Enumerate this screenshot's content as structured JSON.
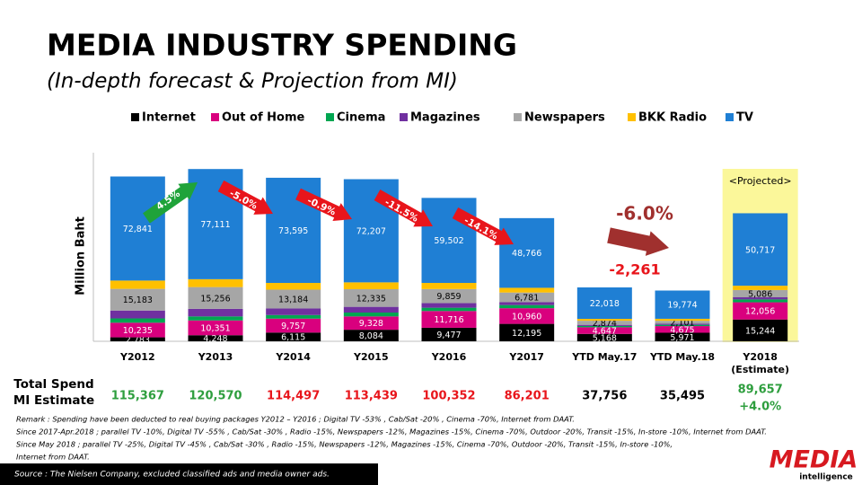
{
  "chart_data": {
    "type": "bar",
    "stacked": true,
    "title": "MEDIA INDUSTRY SPENDING",
    "subtitle": "(In-depth forecast & Projection from MI)",
    "y_label": "Million Baht",
    "legend": "top",
    "categories": [
      "Y2012",
      "Y2013",
      "Y2014",
      "Y2015",
      "Y2016",
      "Y2017",
      "YTD May.17",
      "YTD May.18",
      "Y2018\n(Estimate)"
    ],
    "ylim": [
      0,
      132000
    ],
    "series": [
      {
        "name": "Internet",
        "color": "#000000",
        "label_color": "#ffffff",
        "values": [
          2783,
          4248,
          6115,
          8084,
          9477,
          12195,
          5168,
          5971,
          15244
        ],
        "value_labels": [
          "2,783",
          "4,248",
          "6,115",
          "8,084",
          "9,477",
          "12,195",
          "5,168",
          "5,971",
          "15,244"
        ]
      },
      {
        "name": "Out of Home",
        "color": "#d9007e",
        "label_color": "#ffffff",
        "values": [
          10235,
          10351,
          9757,
          9328,
          11716,
          10960,
          4647,
          4675,
          12056
        ],
        "value_labels": [
          "10,235",
          "10,351",
          "9,757",
          "9,328",
          "11,716",
          "10,960",
          "4,647",
          "4,675",
          "12,056"
        ]
      },
      {
        "name": "Cinema",
        "color": "#00a651",
        "values": [
          3000,
          2800,
          2500,
          2700,
          2300,
          2200,
          900,
          900,
          2000
        ]
      },
      {
        "name": "Magazines",
        "color": "#7030a0",
        "values": [
          5500,
          5300,
          4600,
          4000,
          3200,
          2000,
          800,
          700,
          1500
        ]
      },
      {
        "name": "Newspapers",
        "color": "#a6a6a6",
        "label_color": "#000000",
        "values": [
          15183,
          15256,
          13184,
          12335,
          9859,
          6781,
          2874,
          2101,
          5086
        ],
        "value_labels": [
          "15,183",
          "15,256",
          "13,184",
          "12,335",
          "9,859",
          "6,781",
          "2,874",
          "2,101",
          "5,086"
        ]
      },
      {
        "name": "BKK Radio",
        "color": "#ffc000",
        "values": [
          5800,
          5500,
          4700,
          4800,
          4300,
          3300,
          1300,
          1400,
          3000
        ]
      },
      {
        "name": "TV",
        "color": "#1f7fd4",
        "label_color": "#ffffff",
        "values": [
          72841,
          77111,
          73595,
          72207,
          59502,
          48766,
          22018,
          19774,
          50717
        ],
        "value_labels": [
          "72,841",
          "77,111",
          "73,595",
          "72,207",
          "59,502",
          "48,766",
          "22,018",
          "19,774",
          "50,717"
        ]
      }
    ],
    "growth": [
      {
        "text": "4.5%",
        "color": "#1fa33a"
      },
      {
        "text": "-5.0%",
        "color": "#e8151b"
      },
      {
        "text": "-0.9%",
        "color": "#e8151b"
      },
      {
        "text": "-11.5%",
        "color": "#e8151b"
      },
      {
        "text": "-14.1%",
        "color": "#e8151b"
      }
    ],
    "ytd_change": {
      "percent": "-6.0%",
      "amount": "-2,261",
      "color": "#a0302e"
    },
    "projected_label": "<Projected>",
    "highlight_color": "#fbf79a",
    "totals": {
      "label": "Total  Spend\nMI Estimate",
      "values": [
        115367,
        120570,
        114497,
        113439,
        100352,
        86201,
        37756,
        35495,
        89657
      ],
      "value_labels": [
        "115,367",
        "120,570",
        "114,497",
        "113,439",
        "100,352",
        "86,201",
        "37,756",
        "35,495",
        "89,657"
      ],
      "colors": [
        "#2e9e3e",
        "#2e9e3e",
        "#e8151b",
        "#e8151b",
        "#e8151b",
        "#e8151b",
        "#000000",
        "#000000",
        "#2e9e3e"
      ],
      "estimate_growth": "+4.0%"
    }
  },
  "remarks": [
    "Remark : Spending have been deducted to real buying packages Y2012 – Y2016 ; Digital TV  -53% , Cab/Sat -20% , Cinema  -70%, Internet from DAAT.",
    "Since 2017-Apr.2018 ; parallel TV  -10%, Digital TV -55% , Cab/Sat -30% , Radio -15%, Newspapers -12%, Magazines -15%, Cinema -70%, Outdoor -20%, Transit -15%, In-store -10%, Internet from DAAT.",
    "Since May 2018 ; parallel TV  -25%, Digital TV -45% , Cab/Sat -30% , Radio -15%, Newspapers -12%, Magazines -15%, Cinema -70%, Outdoor -20%, Transit -15%, In-store -10%,",
    "Internet from DAAT."
  ],
  "source": "Source :  The Nielsen Company, excluded  classified ads  and media owner ads.",
  "logo": {
    "name": "MEDIA",
    "tagline": "intelligence"
  }
}
